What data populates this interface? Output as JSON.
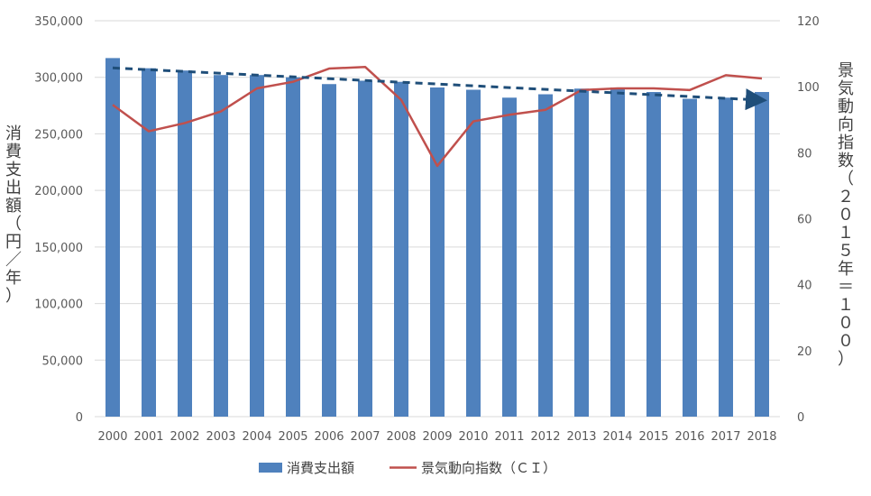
{
  "chart_data": {
    "type": "bar",
    "categories": [
      "2000",
      "2001",
      "2002",
      "2003",
      "2004",
      "2005",
      "2006",
      "2007",
      "2008",
      "2009",
      "2010",
      "2011",
      "2012",
      "2013",
      "2014",
      "2015",
      "2016",
      "2017",
      "2018"
    ],
    "series": [
      {
        "name": "消費支出額",
        "type": "bar",
        "axis": "left",
        "color": "#4F81BD",
        "values": [
          317000,
          308000,
          306000,
          302000,
          302000,
          300000,
          294000,
          297000,
          296000,
          291000,
          289000,
          282000,
          285000,
          290000,
          291000,
          287000,
          281000,
          282000,
          287000
        ]
      },
      {
        "name": "景気動向指数（ＣＩ）",
        "type": "line",
        "axis": "right",
        "color": "#C0504D",
        "values": [
          94.5,
          86.5,
          89,
          92.5,
          99.5,
          101.5,
          105.5,
          106,
          96,
          76,
          89.5,
          91.5,
          93,
          99,
          99.5,
          99.5,
          99,
          103.5,
          102.5
        ]
      }
    ],
    "trendline": {
      "series": "消費支出額",
      "color": "#1F4E79",
      "style": "dashed-arrow"
    },
    "ylabel_left": "消費支出額（円／年）",
    "ylabel_right": "景気動向指数（２０１５年＝１００）",
    "ylim_left": [
      0,
      350000
    ],
    "ylim_right": [
      0,
      120
    ],
    "yticks_left": [
      "0",
      "50,000",
      "100,000",
      "150,000",
      "200,000",
      "250,000",
      "300,000",
      "350,000"
    ],
    "yticks_right": [
      "0",
      "20",
      "40",
      "60",
      "80",
      "100",
      "120"
    ],
    "gridlines": true,
    "legend": "bottom"
  }
}
